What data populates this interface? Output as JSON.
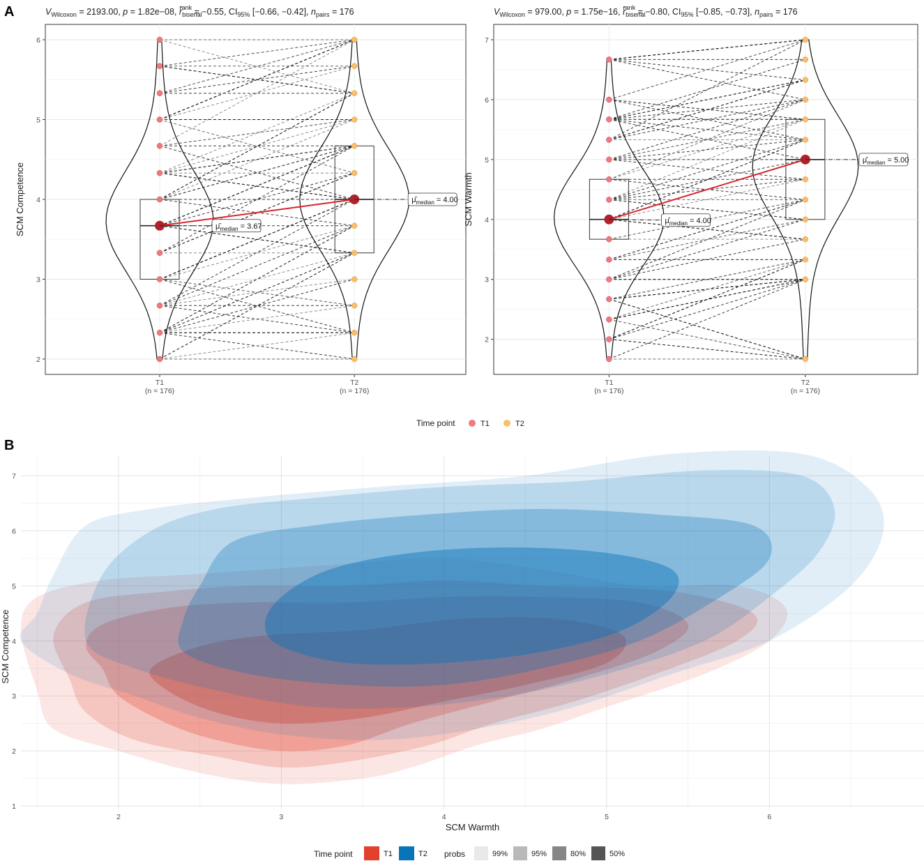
{
  "panel_labels": [
    "A",
    "B"
  ],
  "legend_a": {
    "title": "Time point",
    "items": [
      {
        "label": "T1",
        "color": "#EE7A7F"
      },
      {
        "label": "T2",
        "color": "#F7BE6B"
      }
    ]
  },
  "legend_b": {
    "title": "Time point",
    "items": [
      {
        "label": "T1",
        "color": "#E3412E"
      },
      {
        "label": "T2",
        "color": "#0A74BA"
      }
    ],
    "probs_title": "probs",
    "probs": [
      {
        "label": "99%",
        "color": "#E9E9E9"
      },
      {
        "label": "95%",
        "color": "#B9B9B9"
      },
      {
        "label": "80%",
        "color": "#868686"
      },
      {
        "label": "50%",
        "color": "#555555"
      }
    ]
  },
  "chart_data": [
    {
      "type": "violin-box-paired",
      "stats": {
        "v_label": "Wilcoxon",
        "v": "2193.00",
        "p": "1.82e−08",
        "r": "−0.55",
        "ci": "[−0.66, −0.42]",
        "n_pairs": "176"
      },
      "ylabel": "SCM Competence",
      "ylim": [
        2,
        6
      ],
      "yticks": [
        "2",
        "3",
        "4",
        "5",
        "6"
      ],
      "categories": [
        "T1",
        "T2"
      ],
      "n_labels": [
        "(n = 176)",
        "(n = 176)"
      ],
      "t1_points": [
        2,
        2.33,
        2.67,
        3,
        3.33,
        3.67,
        4,
        4.33,
        4.67,
        5,
        5.33,
        5.67,
        6
      ],
      "t2_points": [
        2,
        2.33,
        2.67,
        3,
        3.33,
        3.67,
        4,
        4.33,
        4.67,
        5,
        5.33,
        5.67,
        6
      ],
      "boxes": [
        {
          "q1": 3,
          "median": 3.67,
          "q3": 4
        },
        {
          "q1": 3.33,
          "median": 4,
          "q3": 4.67
        }
      ],
      "median_labels": [
        "= 3.67",
        "= 4.00"
      ],
      "median_symbol": "μ̂",
      "median_sub": "median"
    },
    {
      "type": "violin-box-paired",
      "stats": {
        "v_label": "Wilcoxon",
        "v": "979.00",
        "p": "1.75e−16",
        "r": "−0.80",
        "ci": "[−0.85, −0.73]",
        "n_pairs": "176"
      },
      "ylabel": "SCM Warmth",
      "ylim": [
        1.67,
        7
      ],
      "yticks": [
        "2",
        "3",
        "4",
        "5",
        "6",
        "7"
      ],
      "categories": [
        "T1",
        "T2"
      ],
      "n_labels": [
        "(n = 176)",
        "(n = 176)"
      ],
      "t1_points": [
        1.67,
        2,
        2.33,
        2.67,
        3,
        3.33,
        3.67,
        4,
        4.33,
        4.67,
        5,
        5.33,
        5.67,
        6,
        6.67
      ],
      "t2_points": [
        1.67,
        3,
        3.33,
        3.67,
        4,
        4.33,
        4.67,
        5,
        5.33,
        5.67,
        6,
        6.33,
        6.67,
        7
      ],
      "boxes": [
        {
          "q1": 3.67,
          "median": 4,
          "q3": 4.67
        },
        {
          "q1": 4,
          "median": 5,
          "q3": 5.67
        }
      ],
      "median_labels": [
        "= 4.00",
        "= 5.00"
      ],
      "median_symbol": "μ̂",
      "median_sub": "median"
    },
    {
      "type": "density-contour",
      "xlabel": "SCM Warmth",
      "ylabel": "SCM Competence",
      "xlim": [
        1.4,
        6.95
      ],
      "ylim": [
        0.95,
        7.35
      ],
      "xticks": [
        "2",
        "3",
        "4",
        "5",
        "6"
      ],
      "yticks": [
        "1",
        "2",
        "3",
        "4",
        "5",
        "6",
        "7"
      ],
      "series": [
        {
          "name": "T1",
          "color": "#E3412E",
          "levels": [
            {
              "prob": "99%",
              "opacity": 0.13,
              "outline": [
                [
                  1.5,
                  3.1
                ],
                [
                  1.6,
                  2.4
                ],
                [
                  2.0,
                  2.0
                ],
                [
                  2.5,
                  1.6
                ],
                [
                  3.0,
                  1.4
                ],
                [
                  3.5,
                  1.5
                ],
                [
                  3.8,
                  1.7
                ],
                [
                  4.2,
                  2.1
                ],
                [
                  4.6,
                  2.4
                ],
                [
                  5.0,
                  2.8
                ],
                [
                  5.6,
                  3.4
                ],
                [
                  6.0,
                  4.0
                ],
                [
                  6.1,
                  4.6
                ],
                [
                  5.8,
                  5.0
                ],
                [
                  5.2,
                  5.0
                ],
                [
                  4.6,
                  5.3
                ],
                [
                  4.0,
                  5.5
                ],
                [
                  3.4,
                  5.4
                ],
                [
                  2.9,
                  5.3
                ],
                [
                  2.4,
                  5.2
                ],
                [
                  1.9,
                  5.1
                ],
                [
                  1.5,
                  4.8
                ],
                [
                  1.4,
                  4.2
                ]
              ]
            },
            {
              "prob": "95%",
              "opacity": 0.2,
              "outline": [
                [
                  1.7,
                  3.3
                ],
                [
                  1.8,
                  2.7
                ],
                [
                  2.1,
                  2.2
                ],
                [
                  2.6,
                  1.9
                ],
                [
                  3.0,
                  1.7
                ],
                [
                  3.4,
                  1.8
                ],
                [
                  3.9,
                  2.1
                ],
                [
                  4.3,
                  2.5
                ],
                [
                  4.8,
                  2.9
                ],
                [
                  5.3,
                  3.4
                ],
                [
                  5.8,
                  4.0
                ],
                [
                  5.9,
                  4.5
                ],
                [
                  5.4,
                  4.9
                ],
                [
                  4.6,
                  5.0
                ],
                [
                  4.0,
                  5.1
                ],
                [
                  3.4,
                  5.0
                ],
                [
                  2.8,
                  5.0
                ],
                [
                  2.3,
                  4.9
                ],
                [
                  1.8,
                  4.7
                ],
                [
                  1.6,
                  4.1
                ]
              ]
            },
            {
              "prob": "80%",
              "opacity": 0.28,
              "outline": [
                [
                  1.9,
                  3.5
                ],
                [
                  2.0,
                  3.0
                ],
                [
                  2.3,
                  2.5
                ],
                [
                  2.6,
                  2.2
                ],
                [
                  3.0,
                  2.0
                ],
                [
                  3.4,
                  2.1
                ],
                [
                  3.8,
                  2.5
                ],
                [
                  4.3,
                  2.9
                ],
                [
                  4.8,
                  3.3
                ],
                [
                  5.3,
                  3.8
                ],
                [
                  5.5,
                  4.3
                ],
                [
                  5.2,
                  4.7
                ],
                [
                  4.6,
                  4.8
                ],
                [
                  4.0,
                  4.8
                ],
                [
                  3.4,
                  4.7
                ],
                [
                  2.8,
                  4.7
                ],
                [
                  2.3,
                  4.6
                ],
                [
                  1.9,
                  4.3
                ],
                [
                  1.8,
                  3.9
                ]
              ]
            },
            {
              "prob": "50%",
              "opacity": 0.4,
              "outline": [
                [
                  2.2,
                  3.5
                ],
                [
                  2.3,
                  3.1
                ],
                [
                  2.6,
                  2.7
                ],
                [
                  3.0,
                  2.5
                ],
                [
                  3.5,
                  2.6
                ],
                [
                  4.0,
                  2.9
                ],
                [
                  4.5,
                  3.2
                ],
                [
                  5.0,
                  3.6
                ],
                [
                  5.1,
                  4.1
                ],
                [
                  4.7,
                  4.4
                ],
                [
                  4.1,
                  4.4
                ],
                [
                  3.5,
                  4.2
                ],
                [
                  2.9,
                  4.1
                ],
                [
                  2.5,
                  3.9
                ]
              ]
            }
          ]
        },
        {
          "name": "T2",
          "color": "#0A74BA",
          "levels": [
            {
              "prob": "99%",
              "opacity": 0.12,
              "outline": [
                [
                  1.4,
                  4.0
                ],
                [
                  1.7,
                  3.4
                ],
                [
                  2.1,
                  3.0
                ],
                [
                  2.5,
                  2.6
                ],
                [
                  3.0,
                  2.3
                ],
                [
                  3.6,
                  2.2
                ],
                [
                  4.2,
                  2.4
                ],
                [
                  4.8,
                  2.8
                ],
                [
                  5.4,
                  3.4
                ],
                [
                  6.0,
                  4.0
                ],
                [
                  6.5,
                  5.0
                ],
                [
                  6.7,
                  6.0
                ],
                [
                  6.6,
                  6.8
                ],
                [
                  6.2,
                  7.4
                ],
                [
                  5.4,
                  7.4
                ],
                [
                  4.5,
                  7.0
                ],
                [
                  3.6,
                  6.8
                ],
                [
                  2.8,
                  6.6
                ],
                [
                  2.2,
                  6.4
                ],
                [
                  1.8,
                  6.1
                ],
                [
                  1.6,
                  5.2
                ],
                [
                  1.5,
                  4.5
                ]
              ]
            },
            {
              "prob": "95%",
              "opacity": 0.18,
              "outline": [
                [
                  1.8,
                  4.0
                ],
                [
                  2.1,
                  3.5
                ],
                [
                  2.6,
                  3.1
                ],
                [
                  3.2,
                  2.8
                ],
                [
                  3.8,
                  2.8
                ],
                [
                  4.4,
                  3.0
                ],
                [
                  5.0,
                  3.4
                ],
                [
                  5.6,
                  4.0
                ],
                [
                  6.0,
                  4.8
                ],
                [
                  6.3,
                  5.6
                ],
                [
                  6.4,
                  6.4
                ],
                [
                  6.2,
                  7.0
                ],
                [
                  5.6,
                  7.1
                ],
                [
                  4.8,
                  6.9
                ],
                [
                  4.0,
                  6.8
                ],
                [
                  3.2,
                  6.6
                ],
                [
                  2.6,
                  6.4
                ],
                [
                  2.2,
                  6.0
                ],
                [
                  1.9,
                  5.2
                ]
              ]
            },
            {
              "prob": "80%",
              "opacity": 0.3,
              "outline": [
                [
                  2.4,
                  3.8
                ],
                [
                  2.8,
                  3.4
                ],
                [
                  3.4,
                  3.2
                ],
                [
                  4.0,
                  3.2
                ],
                [
                  4.6,
                  3.5
                ],
                [
                  5.2,
                  4.0
                ],
                [
                  5.7,
                  4.8
                ],
                [
                  6.0,
                  5.5
                ],
                [
                  5.9,
                  6.1
                ],
                [
                  5.3,
                  6.3
                ],
                [
                  4.6,
                  6.4
                ],
                [
                  3.9,
                  6.3
                ],
                [
                  3.2,
                  6.1
                ],
                [
                  2.7,
                  5.8
                ],
                [
                  2.5,
                  5.0
                ],
                [
                  2.4,
                  4.4
                ]
              ]
            },
            {
              "prob": "50%",
              "opacity": 0.45,
              "outline": [
                [
                  3.0,
                  3.9
                ],
                [
                  3.4,
                  3.6
                ],
                [
                  4.0,
                  3.6
                ],
                [
                  4.6,
                  3.8
                ],
                [
                  5.1,
                  4.2
                ],
                [
                  5.4,
                  4.8
                ],
                [
                  5.4,
                  5.3
                ],
                [
                  5.0,
                  5.6
                ],
                [
                  4.4,
                  5.7
                ],
                [
                  3.8,
                  5.6
                ],
                [
                  3.3,
                  5.3
                ],
                [
                  3.0,
                  4.8
                ],
                [
                  2.9,
                  4.3
                ]
              ]
            }
          ]
        }
      ]
    }
  ]
}
